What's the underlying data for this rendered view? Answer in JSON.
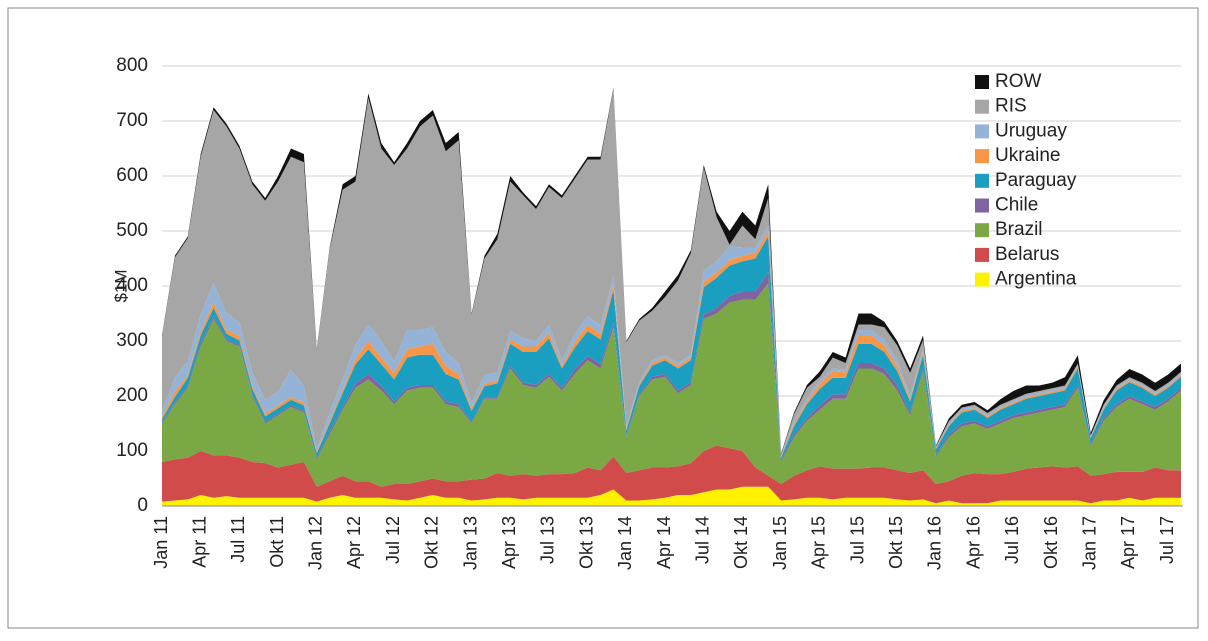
{
  "chart_data": {
    "type": "stacked_area",
    "y_label": "$1M",
    "categories": [
      "Jan 11",
      null,
      null,
      "Apr 11",
      null,
      null,
      "Jul 11",
      null,
      null,
      "Okt 11",
      null,
      null,
      "Jan 12",
      null,
      null,
      "Apr 12",
      null,
      null,
      "Jul 12",
      null,
      null,
      "Okt 12",
      null,
      null,
      "Jan 13",
      null,
      null,
      "Apr 13",
      null,
      null,
      "Jul 13",
      null,
      null,
      "Okt 13",
      null,
      null,
      "Jan 14",
      null,
      null,
      "Apr 14",
      null,
      null,
      "Jul 14",
      null,
      null,
      "Okt 14",
      null,
      null,
      "Jan 15",
      null,
      null,
      "Apr 15",
      null,
      null,
      "Jul 15",
      null,
      null,
      "Okt 15",
      null,
      null,
      "Jan 16",
      null,
      null,
      "Apr 16",
      null,
      null,
      "Jul 16",
      null,
      null,
      "Okt 16",
      null,
      null,
      "Jan 17",
      null,
      null,
      "Apr 17",
      null,
      null,
      "Jul 17",
      null
    ],
    "series": [
      {
        "name": "Argentina",
        "color": "#fff200",
        "values": [
          8,
          10,
          12,
          20,
          15,
          18,
          15,
          15,
          15,
          15,
          15,
          15,
          8,
          15,
          20,
          15,
          15,
          15,
          12,
          10,
          15,
          20,
          15,
          15,
          10,
          12,
          15,
          15,
          12,
          15,
          15,
          15,
          15,
          15,
          20,
          30,
          10,
          10,
          12,
          15,
          20,
          20,
          25,
          30,
          30,
          35,
          35,
          35,
          10,
          12,
          15,
          15,
          12,
          15,
          15,
          15,
          15,
          12,
          10,
          12,
          5,
          10,
          5,
          5,
          5,
          10,
          10,
          10,
          10,
          10,
          10,
          10,
          5,
          10,
          10,
          15,
          10,
          15,
          15,
          15
        ]
      },
      {
        "name": "Belarus",
        "color": "#d24b4b",
        "values": [
          72,
          75,
          76,
          80,
          77,
          74,
          73,
          65,
          63,
          55,
          60,
          65,
          27,
          30,
          35,
          30,
          30,
          20,
          28,
          30,
          30,
          30,
          30,
          30,
          38,
          38,
          45,
          40,
          46,
          40,
          43,
          43,
          45,
          55,
          45,
          60,
          50,
          55,
          58,
          55,
          52,
          58,
          75,
          80,
          75,
          65,
          35,
          20,
          30,
          43,
          50,
          57,
          56,
          53,
          53,
          55,
          55,
          53,
          50,
          53,
          35,
          35,
          50,
          55,
          53,
          48,
          52,
          58,
          60,
          62,
          60,
          62,
          50,
          48,
          52,
          47,
          52,
          55,
          50,
          50
        ]
      },
      {
        "name": "Brazil",
        "color": "#79a845",
        "values": [
          70,
          100,
          127,
          190,
          248,
          208,
          202,
          120,
          72,
          95,
          105,
          90,
          50,
          85,
          120,
          170,
          185,
          175,
          145,
          170,
          170,
          165,
          140,
          135,
          102,
          145,
          135,
          195,
          162,
          160,
          177,
          152,
          180,
          195,
          185,
          235,
          65,
          135,
          160,
          165,
          133,
          142,
          240,
          240,
          265,
          275,
          305,
          350,
          40,
          70,
          90,
          103,
          127,
          127,
          182,
          180,
          170,
          145,
          105,
          180,
          50,
          80,
          90,
          90,
          82,
          92,
          98,
          97,
          100,
          103,
          110,
          143,
          55,
          97,
          118,
          133,
          123,
          105,
          125,
          145
        ]
      },
      {
        "name": "Chile",
        "color": "#8064a2",
        "values": [
          3,
          3,
          3,
          5,
          5,
          3,
          3,
          3,
          3,
          3,
          3,
          3,
          3,
          5,
          5,
          8,
          10,
          8,
          5,
          5,
          5,
          5,
          5,
          5,
          3,
          3,
          3,
          5,
          5,
          5,
          5,
          5,
          8,
          8,
          8,
          8,
          3,
          3,
          5,
          5,
          5,
          5,
          8,
          10,
          12,
          15,
          15,
          20,
          3,
          5,
          5,
          8,
          8,
          8,
          10,
          10,
          10,
          10,
          5,
          5,
          3,
          5,
          5,
          5,
          5,
          5,
          5,
          5,
          5,
          5,
          5,
          5,
          3,
          5,
          5,
          5,
          5,
          5,
          5,
          5
        ]
      },
      {
        "name": "Paraguay",
        "color": "#1a9fc0",
        "values": [
          5,
          10,
          15,
          15,
          15,
          10,
          8,
          10,
          10,
          10,
          10,
          10,
          8,
          15,
          25,
          35,
          45,
          40,
          40,
          55,
          55,
          55,
          50,
          45,
          20,
          20,
          25,
          40,
          55,
          60,
          65,
          35,
          40,
          45,
          45,
          60,
          10,
          15,
          20,
          25,
          40,
          40,
          50,
          55,
          55,
          55,
          60,
          65,
          5,
          15,
          25,
          30,
          30,
          30,
          35,
          35,
          30,
          25,
          20,
          25,
          10,
          15,
          20,
          20,
          15,
          20,
          20,
          25,
          25,
          25,
          25,
          30,
          10,
          15,
          25,
          25,
          25,
          20,
          20,
          20
        ]
      },
      {
        "name": "Ukraine",
        "color": "#f79646",
        "values": [
          5,
          10,
          5,
          8,
          10,
          8,
          8,
          5,
          5,
          5,
          5,
          5,
          3,
          5,
          5,
          10,
          15,
          12,
          12,
          15,
          15,
          20,
          15,
          10,
          5,
          5,
          5,
          8,
          10,
          10,
          10,
          5,
          10,
          12,
          10,
          10,
          3,
          3,
          5,
          5,
          5,
          5,
          10,
          10,
          10,
          10,
          10,
          10,
          2,
          5,
          5,
          10,
          12,
          10,
          15,
          15,
          12,
          10,
          5,
          5,
          2,
          3,
          3,
          3,
          3,
          3,
          3,
          3,
          3,
          3,
          3,
          3,
          2,
          3,
          3,
          3,
          3,
          3,
          3,
          3
        ]
      },
      {
        "name": "Uruguay",
        "color": "#95b3d7",
        "values": [
          10,
          25,
          25,
          30,
          35,
          30,
          25,
          25,
          25,
          25,
          50,
          30,
          5,
          15,
          20,
          25,
          30,
          30,
          20,
          35,
          30,
          30,
          25,
          20,
          10,
          15,
          15,
          15,
          15,
          10,
          15,
          10,
          15,
          15,
          15,
          15,
          5,
          5,
          5,
          5,
          5,
          5,
          20,
          20,
          25,
          15,
          10,
          10,
          2,
          5,
          5,
          5,
          5,
          5,
          10,
          10,
          10,
          10,
          5,
          5,
          2,
          3,
          3,
          3,
          3,
          3,
          3,
          3,
          3,
          3,
          3,
          3,
          2,
          3,
          3,
          3,
          3,
          3,
          3,
          3
        ]
      },
      {
        "name": "RIS",
        "color": "#a6a6a6",
        "values": [
          135,
          219,
          224,
          287,
          315,
          339,
          316,
          342,
          362,
          382,
          387,
          407,
          179,
          297,
          345,
          297,
          412,
          350,
          358,
          330,
          370,
          385,
          365,
          405,
          160,
          212,
          242,
          272,
          260,
          240,
          250,
          295,
          282,
          285,
          302,
          339,
          152,
          111,
          90,
          105,
          150,
          185,
          187,
          80,
          3,
          40,
          15,
          50,
          1,
          12,
          20,
          7,
          20,
          12,
          10,
          10,
          23,
          27,
          42,
          17,
          1,
          3,
          3,
          3,
          3,
          3,
          3,
          3,
          3,
          3,
          3,
          3,
          1,
          3,
          3,
          3,
          3,
          3,
          3,
          3
        ]
      },
      {
        "name": "ROW",
        "color": "#111111",
        "values": [
          2,
          3,
          3,
          5,
          5,
          5,
          5,
          5,
          5,
          10,
          15,
          15,
          2,
          3,
          10,
          10,
          8,
          10,
          5,
          10,
          10,
          10,
          15,
          15,
          2,
          5,
          10,
          10,
          5,
          5,
          5,
          5,
          5,
          5,
          5,
          3,
          2,
          3,
          5,
          10,
          10,
          5,
          5,
          10,
          25,
          25,
          25,
          25,
          2,
          3,
          5,
          10,
          10,
          10,
          20,
          20,
          10,
          8,
          8,
          8,
          2,
          5,
          5,
          5,
          5,
          10,
          15,
          15,
          10,
          10,
          15,
          15,
          5,
          8,
          10,
          15,
          15,
          15,
          15,
          15
        ]
      }
    ],
    "ylim": [
      0,
      800
    ],
    "yticks": [
      0,
      100,
      200,
      300,
      400,
      500,
      600,
      700,
      800
    ],
    "grid": true,
    "legend": "upper right"
  }
}
